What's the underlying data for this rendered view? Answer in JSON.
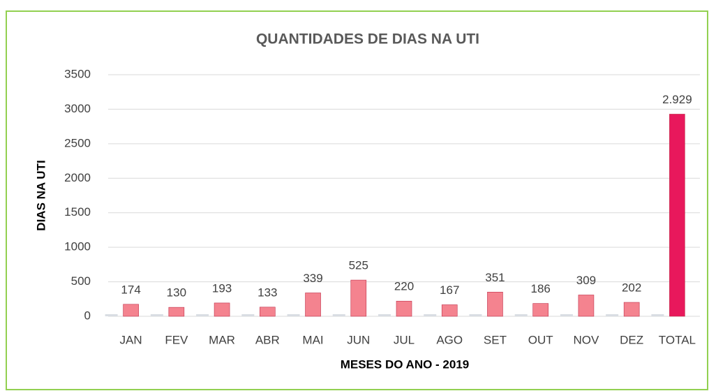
{
  "chart_data": {
    "type": "bar",
    "title": "QUANTIDADES DE DIAS NA UTI",
    "x_label": "MESES DO ANO - 2019",
    "y_label": "DIAS NA UTI",
    "categories": [
      "JAN",
      "FEV",
      "MAR",
      "ABR",
      "MAI",
      "JUN",
      "JUL",
      "AGO",
      "SET",
      "OUT",
      "NOV",
      "DEZ",
      "TOTAL"
    ],
    "values": [
      174,
      130,
      193,
      133,
      339,
      525,
      220,
      167,
      351,
      186,
      309,
      202,
      2929
    ],
    "value_labels": [
      "174",
      "130",
      "193",
      "133",
      "339",
      "525",
      "220",
      "167",
      "351",
      "186",
      "309",
      "202",
      "2.929"
    ],
    "colors": [
      "#f4838f",
      "#f4838f",
      "#f4838f",
      "#f4838f",
      "#f4838f",
      "#f4838f",
      "#f4838f",
      "#f4838f",
      "#f4838f",
      "#f4838f",
      "#f4838f",
      "#f4838f",
      "#e8185c"
    ],
    "ylim": [
      0,
      3500
    ],
    "yticks": [
      0,
      500,
      1000,
      1500,
      2000,
      2500,
      3000,
      3500
    ],
    "grid": true
  }
}
